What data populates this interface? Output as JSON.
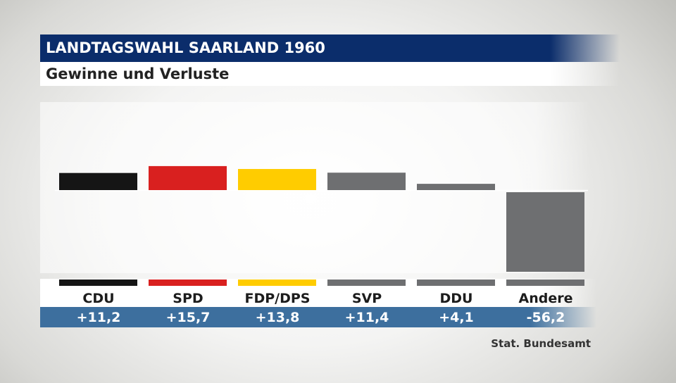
{
  "title": "LANDTAGSWAHL SAARLAND 1960",
  "subtitle": "Gewinne und Verluste",
  "source": "Stat. Bundesamt",
  "chart_data": {
    "type": "bar",
    "categories": [
      "CDU",
      "SPD",
      "FDP/DPS",
      "SVP",
      "DDU",
      "Andere"
    ],
    "values": [
      11.2,
      15.7,
      13.8,
      11.4,
      4.1,
      -56.2
    ],
    "value_labels": [
      "+11,2",
      "+15,7",
      "+13,8",
      "+11,4",
      "+4,1",
      "-56,2"
    ],
    "colors": [
      "#151515",
      "#d9201f",
      "#ffcc00",
      "#6e6f71",
      "#6e6f71",
      "#6e6f71"
    ],
    "ylim": [
      -56.2,
      17.5
    ],
    "grid": false,
    "legend": "none"
  }
}
